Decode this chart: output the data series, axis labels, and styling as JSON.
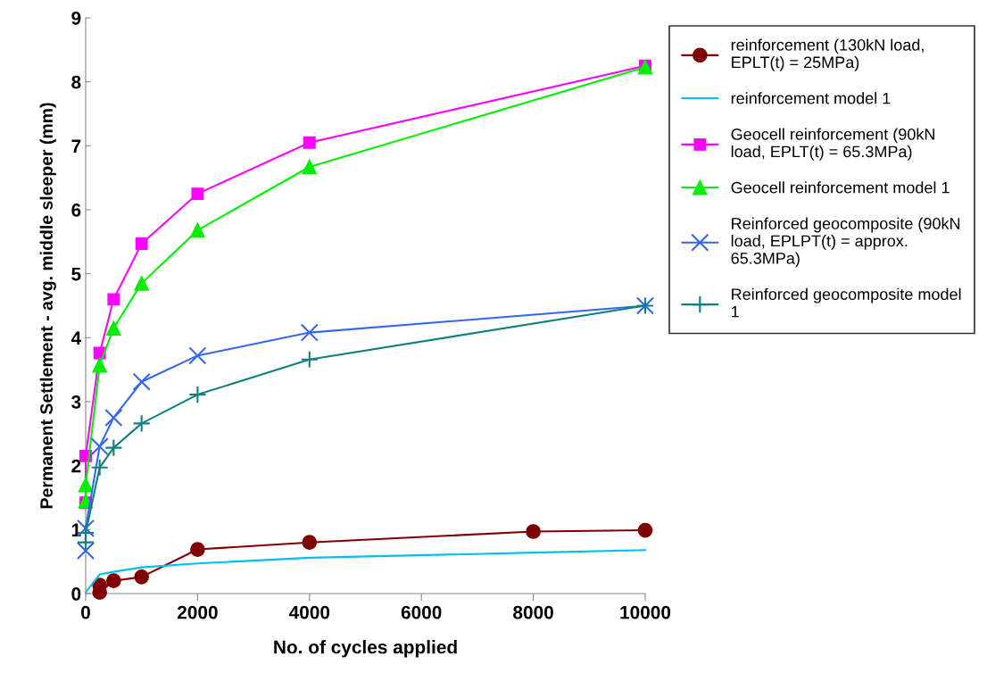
{
  "chart_data": {
    "type": "line",
    "xlabel": "No. of cycles applied",
    "ylabel": "Permanent Settlement - avg. middle sleeper (mm)",
    "xlim": [
      0,
      10000
    ],
    "xticks": [
      0,
      2000,
      4000,
      6000,
      8000,
      10000
    ],
    "ylim": [
      0,
      9
    ],
    "yticks": [
      0,
      1,
      2,
      3,
      4,
      5,
      6,
      7,
      8,
      9
    ],
    "grid": false,
    "legend": "right",
    "series": [
      {
        "name": "reinforcement (130kN load, EPLT(t) = 25MPa)",
        "color": "#7f0000",
        "marker": "circle",
        "x": [
          250,
          250,
          500,
          1000,
          2000,
          4000,
          8000,
          10000
        ],
        "values": [
          0.13,
          0.02,
          0.2,
          0.26,
          0.69,
          0.8,
          0.97,
          0.99
        ]
      },
      {
        "name": "reinforcement model 1",
        "color": "#00c0f0",
        "marker": "none",
        "x": [
          0,
          250,
          500,
          1000,
          2000,
          4000,
          8000,
          10000
        ],
        "values": [
          0.02,
          0.3,
          0.34,
          0.41,
          0.47,
          0.56,
          0.64,
          0.68
        ]
      },
      {
        "name": "Geocell reinforcement (90kN load, EPLT(t) = 65.3MPa)",
        "color": "#ff00ff",
        "marker": "square",
        "x": [
          0,
          0,
          250,
          500,
          1000,
          2000,
          4000,
          10000
        ],
        "values": [
          1.42,
          2.15,
          3.76,
          4.6,
          5.47,
          6.25,
          7.05,
          8.25
        ]
      },
      {
        "name": "Geocell reinforcement model 1",
        "color": "#00ee00",
        "marker": "triangle",
        "x": [
          0,
          0,
          250,
          500,
          1000,
          2000,
          4000,
          10000
        ],
        "values": [
          1.45,
          1.7,
          3.57,
          4.15,
          4.85,
          5.68,
          6.67,
          8.23
        ]
      },
      {
        "name": "Reinforced geocomposite (90kN load, EPLPT(t) = approx. 65.3MPa)",
        "color": "#3366ee",
        "marker": "cross",
        "x": [
          0,
          0,
          250,
          500,
          1000,
          2000,
          4000,
          10000
        ],
        "values": [
          0.67,
          1.02,
          2.3,
          2.75,
          3.31,
          3.72,
          4.08,
          4.5
        ]
      },
      {
        "name": "Reinforced geocomposite model 1",
        "color": "#118080",
        "marker": "plus",
        "x": [
          0,
          0,
          250,
          500,
          1000,
          2000,
          4000,
          10000
        ],
        "values": [
          0.8,
          0.95,
          1.97,
          2.28,
          2.66,
          3.11,
          3.66,
          4.5
        ]
      }
    ]
  }
}
